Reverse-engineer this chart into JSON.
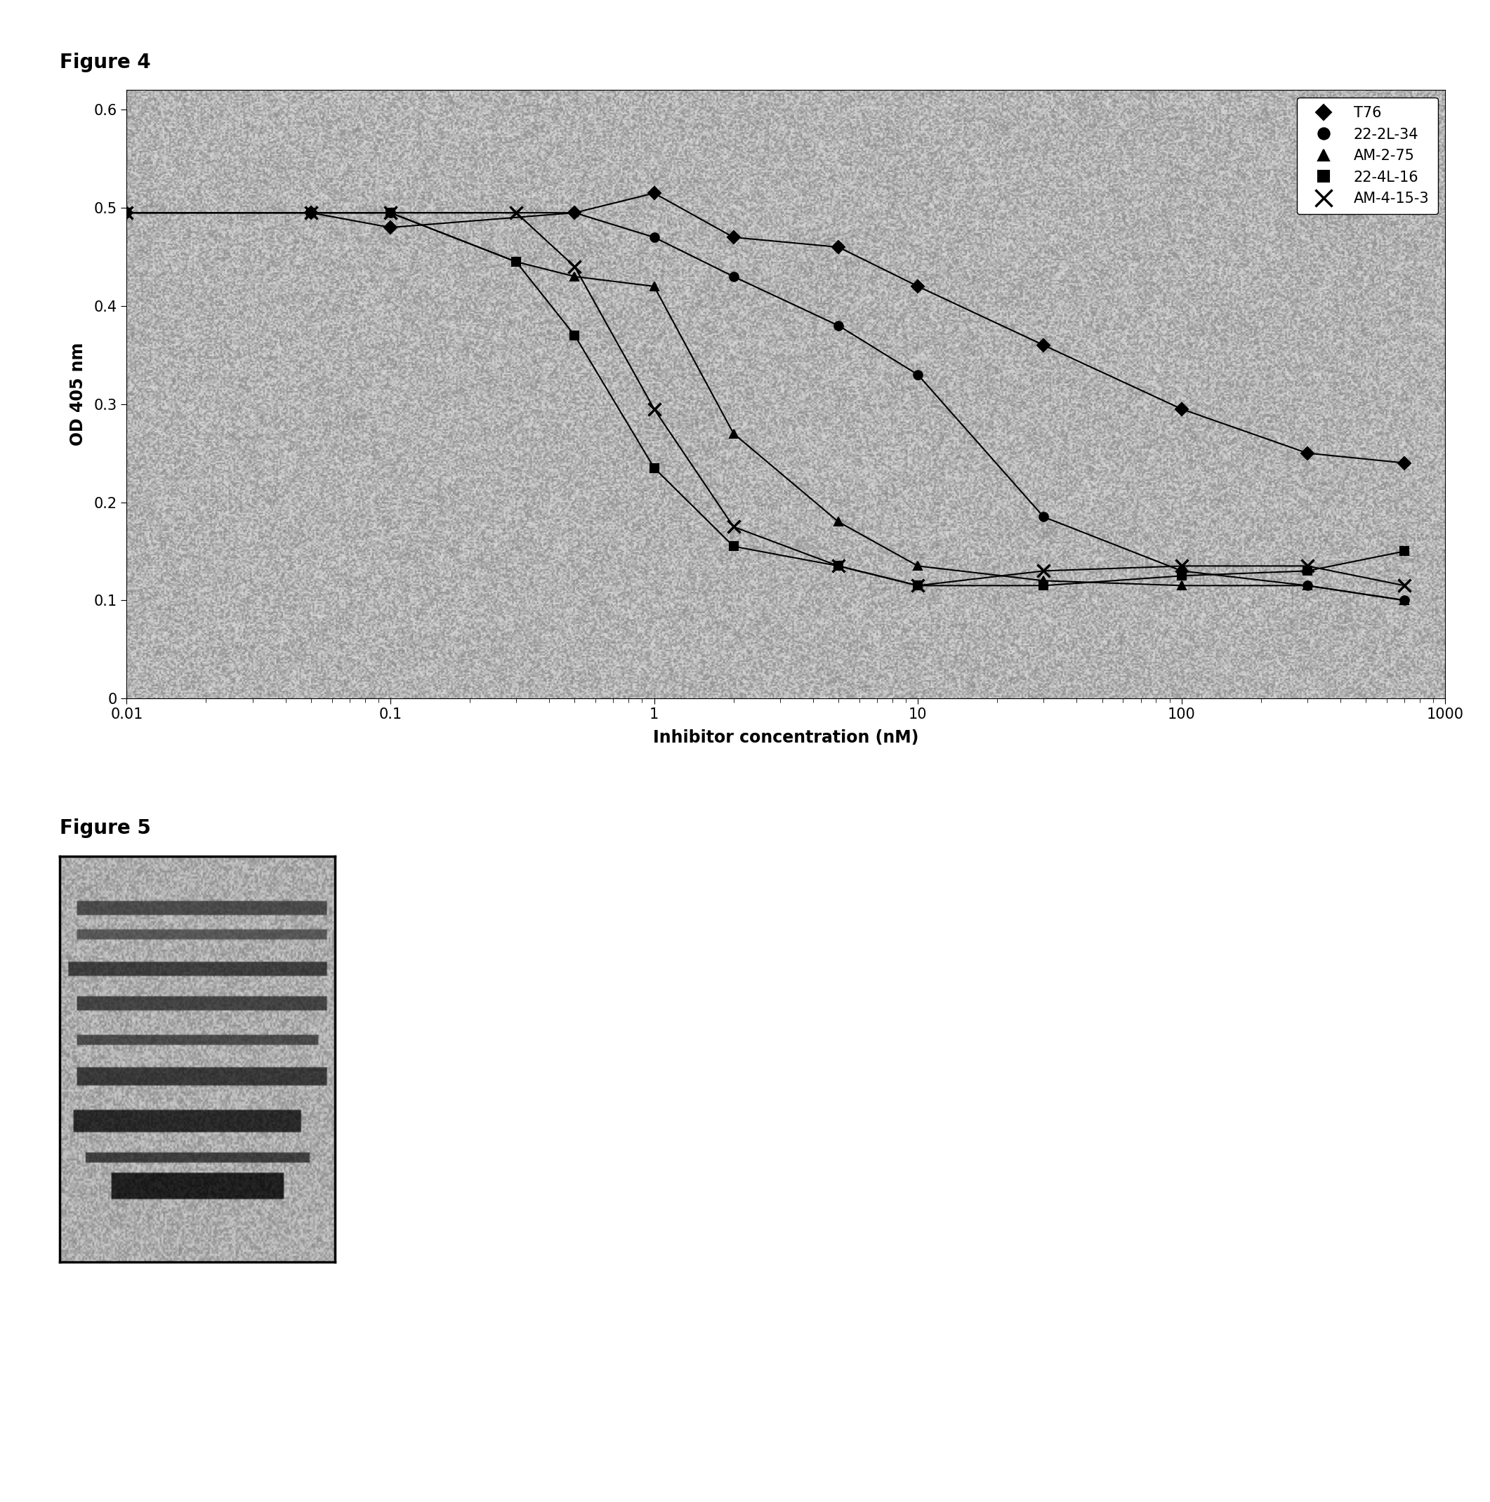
{
  "xlabel": "Inhibitor concentration (nM)",
  "ylabel": "OD 405 nm",
  "xlim": [
    0.01,
    1000
  ],
  "ylim": [
    0,
    0.62
  ],
  "yticks": [
    0,
    0.1,
    0.2,
    0.3,
    0.4,
    0.5,
    0.6
  ],
  "background_color": "#a8a8a8",
  "series": [
    {
      "label": "T76",
      "marker": "D",
      "color": "#000000",
      "x": [
        0.01,
        0.05,
        0.1,
        0.5,
        1.0,
        2.0,
        5.0,
        10.0,
        30.0,
        100.0,
        300.0,
        700.0
      ],
      "y": [
        0.495,
        0.495,
        0.48,
        0.495,
        0.515,
        0.47,
        0.46,
        0.42,
        0.36,
        0.295,
        0.25,
        0.24
      ]
    },
    {
      "label": "22-2L-34",
      "marker": "o",
      "color": "#000000",
      "x": [
        0.01,
        0.05,
        0.1,
        0.5,
        1.0,
        2.0,
        5.0,
        10.0,
        30.0,
        100.0,
        300.0,
        700.0
      ],
      "y": [
        0.495,
        0.495,
        0.495,
        0.495,
        0.47,
        0.43,
        0.38,
        0.33,
        0.185,
        0.13,
        0.115,
        0.1
      ]
    },
    {
      "label": "AM-2-75",
      "marker": "^",
      "color": "#000000",
      "x": [
        0.01,
        0.05,
        0.1,
        0.3,
        0.5,
        1.0,
        2.0,
        5.0,
        10.0,
        30.0,
        100.0,
        300.0,
        700.0
      ],
      "y": [
        0.495,
        0.495,
        0.495,
        0.445,
        0.43,
        0.42,
        0.27,
        0.18,
        0.135,
        0.12,
        0.115,
        0.115,
        0.1
      ]
    },
    {
      "label": "22-4L-16",
      "marker": "s",
      "color": "#000000",
      "x": [
        0.01,
        0.05,
        0.1,
        0.3,
        0.5,
        1.0,
        2.0,
        5.0,
        10.0,
        30.0,
        100.0,
        300.0,
        700.0
      ],
      "y": [
        0.495,
        0.495,
        0.495,
        0.445,
        0.37,
        0.235,
        0.155,
        0.135,
        0.115,
        0.115,
        0.125,
        0.13,
        0.15
      ]
    },
    {
      "label": "AM-4-15-3",
      "marker": "x",
      "color": "#000000",
      "x": [
        0.01,
        0.05,
        0.1,
        0.3,
        0.5,
        1.0,
        2.0,
        5.0,
        10.0,
        30.0,
        100.0,
        300.0,
        700.0
      ],
      "y": [
        0.495,
        0.495,
        0.495,
        0.495,
        0.44,
        0.295,
        0.175,
        0.135,
        0.115,
        0.13,
        0.135,
        0.135,
        0.115
      ]
    }
  ],
  "fig4_label": "Figure 4",
  "fig5_label": "Figure 5",
  "fig4_label_fontsize": 20,
  "fig5_label_fontsize": 20,
  "axis_label_fontsize": 17,
  "tick_fontsize": 15,
  "legend_fontsize": 15,
  "marker_size": 9,
  "line_width": 1.5
}
